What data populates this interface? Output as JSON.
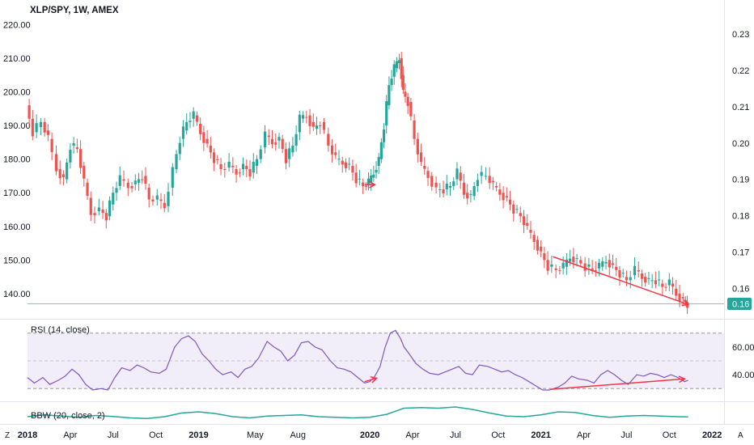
{
  "chart_data": [
    {
      "type": "candlestick",
      "title": "XLP/SPY, 1W, AMEX",
      "left_axis": {
        "ylim": [
          133.5,
          222
        ],
        "ticks": [
          140,
          150,
          160,
          170,
          180,
          190,
          200,
          210,
          220
        ],
        "tick_labels": [
          "140.00",
          "150.00",
          "160.00",
          "170.00",
          "180.00",
          "190.00",
          "200.00",
          "210.00",
          "220.00"
        ]
      },
      "right_axis": {
        "ylim": [
          0.1525,
          0.2345
        ],
        "ticks": [
          0.16,
          0.17,
          0.18,
          0.19,
          0.2,
          0.21,
          0.22,
          0.23
        ],
        "tick_labels": [
          "0.16",
          "0.17",
          "0.18",
          "0.19",
          "0.20",
          "0.21",
          "0.22",
          "0.23"
        ]
      },
      "x_axis": {
        "xlim": [
          2018.0,
          2022.07
        ],
        "ticks": [
          {
            "t": 2018.0,
            "label": "2018"
          },
          {
            "t": 2018.25,
            "label": "Apr"
          },
          {
            "t": 2018.5,
            "label": "Jul"
          },
          {
            "t": 2018.75,
            "label": "Oct"
          },
          {
            "t": 2019.0,
            "label": "2019"
          },
          {
            "t": 2019.33,
            "label": "May"
          },
          {
            "t": 2019.58,
            "label": "Aug"
          },
          {
            "t": 2020.0,
            "label": "2020"
          },
          {
            "t": 2020.25,
            "label": "Apr"
          },
          {
            "t": 2020.5,
            "label": "Jul"
          },
          {
            "t": 2020.75,
            "label": "Oct"
          },
          {
            "t": 2021.0,
            "label": "2021"
          },
          {
            "t": 2021.25,
            "label": "Apr"
          },
          {
            "t": 2021.5,
            "label": "Jul"
          },
          {
            "t": 2021.75,
            "label": "Oct"
          },
          {
            "t": 2022.0,
            "label": "2022"
          }
        ]
      },
      "series_path": [
        [
          2018.0,
          196
        ],
        [
          2018.04,
          188
        ],
        [
          2018.09,
          191
        ],
        [
          2018.13,
          186
        ],
        [
          2018.18,
          177
        ],
        [
          2018.22,
          174
        ],
        [
          2018.26,
          184
        ],
        [
          2018.3,
          183
        ],
        [
          2018.34,
          173
        ],
        [
          2018.38,
          164
        ],
        [
          2018.43,
          165
        ],
        [
          2018.47,
          163
        ],
        [
          2018.51,
          170
        ],
        [
          2018.55,
          174
        ],
        [
          2018.6,
          172
        ],
        [
          2018.64,
          173
        ],
        [
          2018.68,
          175
        ],
        [
          2018.72,
          168
        ],
        [
          2018.77,
          168
        ],
        [
          2018.81,
          166
        ],
        [
          2018.86,
          177
        ],
        [
          2018.9,
          186
        ],
        [
          2018.94,
          191
        ],
        [
          2018.98,
          193
        ],
        [
          2019.02,
          188
        ],
        [
          2019.06,
          184
        ],
        [
          2019.1,
          180
        ],
        [
          2019.14,
          177
        ],
        [
          2019.19,
          178
        ],
        [
          2019.23,
          176
        ],
        [
          2019.27,
          178
        ],
        [
          2019.31,
          176
        ],
        [
          2019.35,
          180
        ],
        [
          2019.4,
          187
        ],
        [
          2019.44,
          185
        ],
        [
          2019.48,
          186
        ],
        [
          2019.52,
          180
        ],
        [
          2019.56,
          184
        ],
        [
          2019.6,
          192
        ],
        [
          2019.64,
          193
        ],
        [
          2019.68,
          189
        ],
        [
          2019.72,
          191
        ],
        [
          2019.77,
          184
        ],
        [
          2019.81,
          180
        ],
        [
          2019.85,
          179
        ],
        [
          2019.89,
          178
        ],
        [
          2019.93,
          174
        ],
        [
          2019.97,
          172
        ],
        [
          2020.0,
          173
        ],
        [
          2020.03,
          176
        ],
        [
          2020.06,
          180
        ],
        [
          2020.09,
          190
        ],
        [
          2020.12,
          202
        ],
        [
          2020.15,
          207
        ],
        [
          2020.18,
          210
        ],
        [
          2020.2,
          200
        ],
        [
          2020.23,
          197
        ],
        [
          2020.27,
          186
        ],
        [
          2020.31,
          178
        ],
        [
          2020.35,
          175
        ],
        [
          2020.4,
          171
        ],
        [
          2020.44,
          171
        ],
        [
          2020.48,
          172
        ],
        [
          2020.52,
          176
        ],
        [
          2020.56,
          170
        ],
        [
          2020.6,
          169
        ],
        [
          2020.64,
          175
        ],
        [
          2020.69,
          175
        ],
        [
          2020.73,
          172
        ],
        [
          2020.77,
          170
        ],
        [
          2020.81,
          168
        ],
        [
          2020.85,
          165
        ],
        [
          2020.89,
          163
        ],
        [
          2020.93,
          159
        ],
        [
          2020.97,
          156
        ],
        [
          2021.01,
          152
        ],
        [
          2021.05,
          148
        ],
        [
          2021.1,
          147
        ],
        [
          2021.14,
          148
        ],
        [
          2021.18,
          151
        ],
        [
          2021.22,
          150
        ],
        [
          2021.27,
          148
        ],
        [
          2021.31,
          147
        ],
        [
          2021.35,
          148
        ],
        [
          2021.39,
          150
        ],
        [
          2021.43,
          148
        ],
        [
          2021.47,
          146
        ],
        [
          2021.51,
          144
        ],
        [
          2021.56,
          147
        ],
        [
          2021.6,
          145
        ],
        [
          2021.64,
          144
        ],
        [
          2021.68,
          144
        ],
        [
          2021.72,
          142
        ],
        [
          2021.76,
          143
        ],
        [
          2021.8,
          140
        ],
        [
          2021.84,
          138
        ],
        [
          2021.86,
          137
        ]
      ],
      "annotations": [
        {
          "type": "arrow",
          "from": [
            2019.97,
            172.4
          ],
          "to": [
            2020.03,
            172.4
          ]
        },
        {
          "type": "arrow",
          "from": [
            2021.07,
            151
          ],
          "to": [
            2021.86,
            136.8
          ]
        }
      ],
      "last_price_label": "0.16"
    },
    {
      "type": "line",
      "title": "RSI (14, close)",
      "ylim": [
        22,
        78
      ],
      "ticks": [
        40,
        60
      ],
      "tick_labels": [
        "40.00",
        "60.00"
      ],
      "band": [
        30,
        70
      ],
      "midline": 50,
      "path": [
        [
          2018.0,
          38
        ],
        [
          2018.04,
          34
        ],
        [
          2018.09,
          38
        ],
        [
          2018.13,
          33
        ],
        [
          2018.18,
          36
        ],
        [
          2018.22,
          39
        ],
        [
          2018.26,
          44
        ],
        [
          2018.3,
          40
        ],
        [
          2018.34,
          33
        ],
        [
          2018.38,
          29
        ],
        [
          2018.43,
          30
        ],
        [
          2018.47,
          29
        ],
        [
          2018.51,
          38
        ],
        [
          2018.55,
          45
        ],
        [
          2018.6,
          43
        ],
        [
          2018.64,
          47
        ],
        [
          2018.68,
          45
        ],
        [
          2018.72,
          42
        ],
        [
          2018.77,
          41
        ],
        [
          2018.81,
          44
        ],
        [
          2018.86,
          60
        ],
        [
          2018.9,
          66
        ],
        [
          2018.94,
          68
        ],
        [
          2018.98,
          64
        ],
        [
          2019.02,
          55
        ],
        [
          2019.06,
          50
        ],
        [
          2019.1,
          44
        ],
        [
          2019.14,
          40
        ],
        [
          2019.19,
          42
        ],
        [
          2019.23,
          38
        ],
        [
          2019.27,
          44
        ],
        [
          2019.31,
          46
        ],
        [
          2019.35,
          52
        ],
        [
          2019.4,
          64
        ],
        [
          2019.44,
          60
        ],
        [
          2019.48,
          57
        ],
        [
          2019.52,
          50
        ],
        [
          2019.56,
          54
        ],
        [
          2019.6,
          63
        ],
        [
          2019.64,
          64
        ],
        [
          2019.68,
          60
        ],
        [
          2019.72,
          58
        ],
        [
          2019.77,
          50
        ],
        [
          2019.81,
          45
        ],
        [
          2019.85,
          44
        ],
        [
          2019.89,
          42
        ],
        [
          2019.93,
          38
        ],
        [
          2019.97,
          34
        ],
        [
          2020.0,
          35
        ],
        [
          2020.03,
          39
        ],
        [
          2020.06,
          46
        ],
        [
          2020.09,
          60
        ],
        [
          2020.12,
          70
        ],
        [
          2020.15,
          72
        ],
        [
          2020.18,
          66
        ],
        [
          2020.2,
          60
        ],
        [
          2020.23,
          55
        ],
        [
          2020.27,
          48
        ],
        [
          2020.31,
          44
        ],
        [
          2020.35,
          41
        ],
        [
          2020.4,
          40
        ],
        [
          2020.44,
          42
        ],
        [
          2020.48,
          44
        ],
        [
          2020.52,
          46
        ],
        [
          2020.56,
          41
        ],
        [
          2020.6,
          40
        ],
        [
          2020.64,
          47
        ],
        [
          2020.69,
          46
        ],
        [
          2020.73,
          44
        ],
        [
          2020.77,
          42
        ],
        [
          2020.81,
          43
        ],
        [
          2020.85,
          40
        ],
        [
          2020.89,
          38
        ],
        [
          2020.93,
          35
        ],
        [
          2020.97,
          32
        ],
        [
          2021.01,
          29
        ],
        [
          2021.05,
          29
        ],
        [
          2021.1,
          31
        ],
        [
          2021.14,
          34
        ],
        [
          2021.18,
          39
        ],
        [
          2021.22,
          37
        ],
        [
          2021.27,
          36
        ],
        [
          2021.31,
          34
        ],
        [
          2021.35,
          40
        ],
        [
          2021.39,
          43
        ],
        [
          2021.43,
          40
        ],
        [
          2021.47,
          36
        ],
        [
          2021.51,
          33
        ],
        [
          2021.56,
          40
        ],
        [
          2021.6,
          39
        ],
        [
          2021.64,
          41
        ],
        [
          2021.68,
          40
        ],
        [
          2021.72,
          38
        ],
        [
          2021.76,
          40
        ],
        [
          2021.8,
          38
        ],
        [
          2021.84,
          35
        ],
        [
          2021.86,
          36
        ]
      ],
      "annotations": [
        {
          "type": "arrow",
          "from": [
            2019.97,
            35
          ],
          "to": [
            2020.04,
            37.5
          ]
        },
        {
          "type": "arrow",
          "from": [
            2021.06,
            29.5
          ],
          "to": [
            2021.84,
            37
          ]
        }
      ]
    },
    {
      "type": "line",
      "title": "BBW (20, close, 2)",
      "tick_labels": [],
      "ylim": [
        0,
        0.16
      ],
      "path": [
        [
          2018.0,
          0.06
        ],
        [
          2018.1,
          0.075
        ],
        [
          2018.2,
          0.065
        ],
        [
          2018.3,
          0.055
        ],
        [
          2018.4,
          0.07
        ],
        [
          2018.5,
          0.062
        ],
        [
          2018.6,
          0.05
        ],
        [
          2018.7,
          0.045
        ],
        [
          2018.8,
          0.06
        ],
        [
          2018.9,
          0.09
        ],
        [
          2019.0,
          0.1
        ],
        [
          2019.1,
          0.085
        ],
        [
          2019.2,
          0.06
        ],
        [
          2019.3,
          0.05
        ],
        [
          2019.4,
          0.065
        ],
        [
          2019.5,
          0.07
        ],
        [
          2019.6,
          0.075
        ],
        [
          2019.7,
          0.06
        ],
        [
          2019.8,
          0.055
        ],
        [
          2019.9,
          0.05
        ],
        [
          2020.0,
          0.055
        ],
        [
          2020.1,
          0.08
        ],
        [
          2020.2,
          0.13
        ],
        [
          2020.3,
          0.135
        ],
        [
          2020.4,
          0.13
        ],
        [
          2020.5,
          0.14
        ],
        [
          2020.6,
          0.12
        ],
        [
          2020.7,
          0.09
        ],
        [
          2020.8,
          0.065
        ],
        [
          2020.9,
          0.06
        ],
        [
          2021.0,
          0.075
        ],
        [
          2021.1,
          0.1
        ],
        [
          2021.2,
          0.095
        ],
        [
          2021.3,
          0.07
        ],
        [
          2021.4,
          0.055
        ],
        [
          2021.5,
          0.065
        ],
        [
          2021.6,
          0.07
        ],
        [
          2021.7,
          0.065
        ],
        [
          2021.8,
          0.06
        ],
        [
          2021.86,
          0.058
        ]
      ]
    }
  ],
  "corner": {
    "left": "Z",
    "right": "A"
  },
  "colors": {
    "up": "#26a69a",
    "down": "#ef5350",
    "rsi": "#7e57c2",
    "bbw": "#26a69a",
    "arrow": "#f23645",
    "last": "#26a69a"
  }
}
